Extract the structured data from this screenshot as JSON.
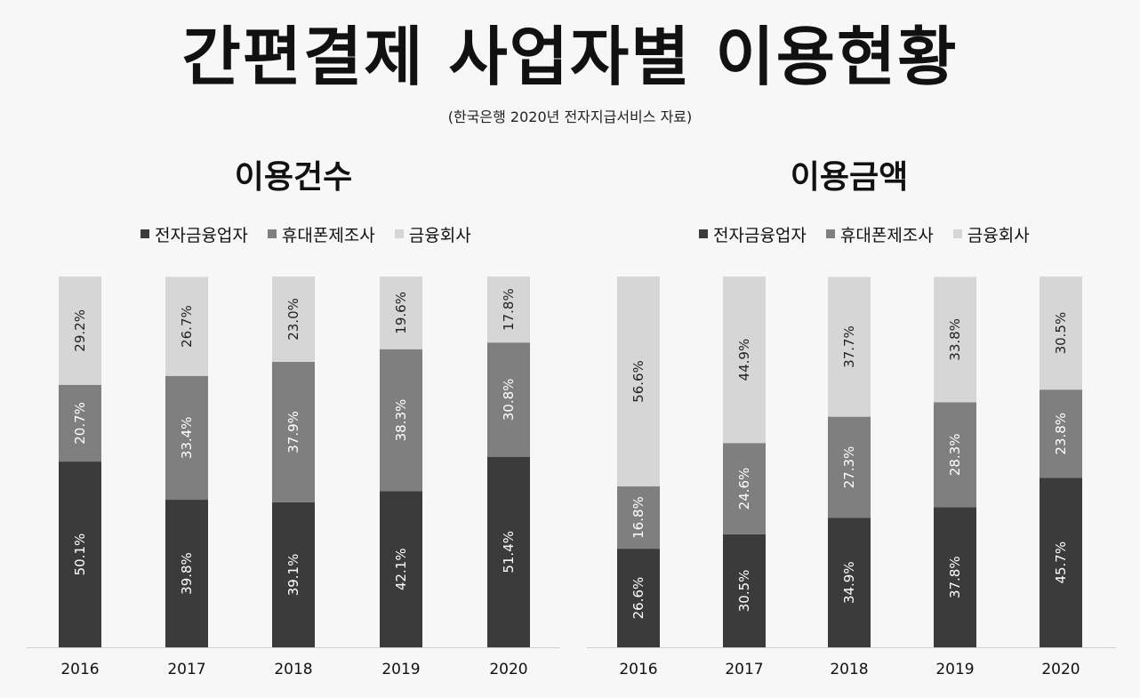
{
  "title": "간편결제 사업자별 이용현황",
  "subtitle": "(한국은행 2020년 전자지급서비스 자료)",
  "colors": {
    "dark": "#3b3b3b",
    "mid": "#7f7f7f",
    "light": "#d6d6d6"
  },
  "chart_data": [
    {
      "type": "bar",
      "stacked": true,
      "title": "이용건수",
      "categories": [
        "2016",
        "2017",
        "2018",
        "2019",
        "2020"
      ],
      "series": [
        {
          "name": "전자금융업자",
          "values": [
            50.1,
            39.8,
            39.1,
            42.1,
            51.4
          ],
          "labels": [
            "50.1%",
            "39.8%",
            "39.1%",
            "42.1%",
            "51.4%"
          ]
        },
        {
          "name": "휴대폰제조사",
          "values": [
            20.7,
            33.4,
            37.9,
            38.3,
            30.8
          ],
          "labels": [
            "20.7%",
            "33.4%",
            "37.9%",
            "38.3%",
            "30.8%"
          ]
        },
        {
          "name": "금융회사",
          "values": [
            29.2,
            26.7,
            23.0,
            19.6,
            17.8
          ],
          "labels": [
            "29.2%",
            "26.7%",
            "23.0%",
            "19.6%",
            "17.8%"
          ]
        }
      ],
      "ylim": [
        0,
        100
      ],
      "legend": "top"
    },
    {
      "type": "bar",
      "stacked": true,
      "title": "이용금액",
      "categories": [
        "2016",
        "2017",
        "2018",
        "2019",
        "2020"
      ],
      "series": [
        {
          "name": "전자금융업자",
          "values": [
            26.6,
            30.5,
            34.9,
            37.8,
            45.7
          ],
          "labels": [
            "26.6%",
            "30.5%",
            "34.9%",
            "37.8%",
            "45.7%"
          ]
        },
        {
          "name": "휴대폰제조사",
          "values": [
            16.8,
            24.6,
            27.3,
            28.3,
            23.8
          ],
          "labels": [
            "16.8%",
            "24.6%",
            "27.3%",
            "28.3%",
            "23.8%"
          ]
        },
        {
          "name": "금융회사",
          "values": [
            56.6,
            44.9,
            37.7,
            33.8,
            30.5
          ],
          "labels": [
            "56.6%",
            "44.9%",
            "37.7%",
            "33.8%",
            "30.5%"
          ]
        }
      ],
      "ylim": [
        0,
        100
      ],
      "legend": "top"
    }
  ]
}
